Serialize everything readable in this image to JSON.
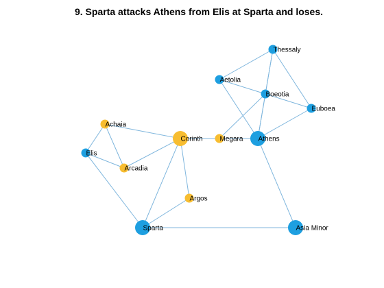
{
  "title": "9. Sparta attacks Athens from Elis at Sparta and loses.",
  "colors": {
    "edge": "#7fb6dd",
    "blue_node": "#1e9fe0",
    "orange_node": "#f7bd31",
    "background": "#ffffff"
  },
  "nodes": [
    {
      "id": "thessaly",
      "label": "Thessaly",
      "color": "blue",
      "size": "small"
    },
    {
      "id": "aetolia",
      "label": "Aetolia",
      "color": "blue",
      "size": "small"
    },
    {
      "id": "boeotia",
      "label": "Boeotia",
      "color": "blue",
      "size": "small"
    },
    {
      "id": "euboea",
      "label": "Euboea",
      "color": "blue",
      "size": "small"
    },
    {
      "id": "achaia",
      "label": "Achaia",
      "color": "orange",
      "size": "small"
    },
    {
      "id": "corinth",
      "label": "Corinth",
      "color": "orange",
      "size": "large"
    },
    {
      "id": "megara",
      "label": "Megara",
      "color": "orange",
      "size": "small"
    },
    {
      "id": "athens",
      "label": "Athens",
      "color": "blue",
      "size": "large"
    },
    {
      "id": "elis",
      "label": "Elis",
      "color": "blue",
      "size": "small"
    },
    {
      "id": "arcadia",
      "label": "Arcadia",
      "color": "orange",
      "size": "small"
    },
    {
      "id": "argos",
      "label": "Argos",
      "color": "orange",
      "size": "small"
    },
    {
      "id": "sparta",
      "label": "Sparta",
      "color": "blue",
      "size": "large"
    },
    {
      "id": "asia-minor",
      "label": "Asia Minor",
      "color": "blue",
      "size": "large"
    }
  ],
  "edges": [
    [
      "thessaly",
      "aetolia"
    ],
    [
      "thessaly",
      "boeotia"
    ],
    [
      "thessaly",
      "euboea"
    ],
    [
      "thessaly",
      "athens"
    ],
    [
      "aetolia",
      "boeotia"
    ],
    [
      "aetolia",
      "athens"
    ],
    [
      "boeotia",
      "euboea"
    ],
    [
      "boeotia",
      "megara"
    ],
    [
      "boeotia",
      "athens"
    ],
    [
      "euboea",
      "athens"
    ],
    [
      "megara",
      "athens"
    ],
    [
      "corinth",
      "megara"
    ],
    [
      "athens",
      "asia-minor"
    ],
    [
      "achaia",
      "corinth"
    ],
    [
      "achaia",
      "elis"
    ],
    [
      "achaia",
      "arcadia"
    ],
    [
      "elis",
      "arcadia"
    ],
    [
      "elis",
      "sparta"
    ],
    [
      "arcadia",
      "corinth"
    ],
    [
      "corinth",
      "argos"
    ],
    [
      "corinth",
      "sparta"
    ],
    [
      "argos",
      "sparta"
    ],
    [
      "sparta",
      "asia-minor"
    ]
  ]
}
